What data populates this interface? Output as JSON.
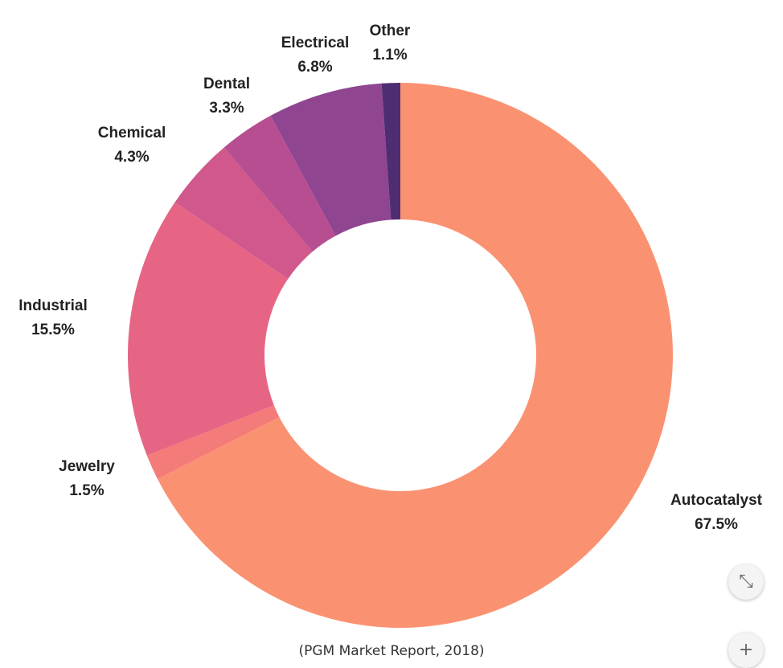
{
  "chart_data": {
    "type": "pie",
    "donut": true,
    "slices": [
      {
        "label": "Autocatalyst",
        "value": 67.5,
        "value_label": "67.5%",
        "color": "#FA9272"
      },
      {
        "label": "Jewelry",
        "value": 1.5,
        "value_label": "1.5%",
        "color": "#F37B79"
      },
      {
        "label": "Industrial",
        "value": 15.5,
        "value_label": "15.5%",
        "color": "#E66584"
      },
      {
        "label": "Chemical",
        "value": 4.3,
        "value_label": "4.3%",
        "color": "#D0588D"
      },
      {
        "label": "Dental",
        "value": 3.3,
        "value_label": "3.3%",
        "color": "#B74E91"
      },
      {
        "label": "Electrical",
        "value": 6.8,
        "value_label": "6.8%",
        "color": "#904591"
      },
      {
        "label": "Other",
        "value": 1.1,
        "value_label": "1.1%",
        "color": "#4E2D73"
      }
    ],
    "start_angle_deg": 0,
    "direction": "clockwise",
    "legend": "none",
    "source_note": "(PGM Market Report, 2018)"
  },
  "controls": {
    "collapse_icon": "collapse-icon",
    "collapse_glyph": "⤡",
    "plus_icon": "plus-icon",
    "plus_glyph": "+"
  }
}
